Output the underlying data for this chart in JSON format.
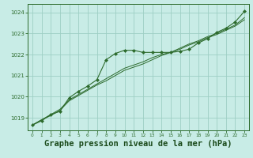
{
  "background_color": "#c8ece6",
  "grid_color": "#9dcfc4",
  "line_color": "#2d6b2d",
  "marker_color": "#2d6b2d",
  "title": "Graphe pression niveau de la mer (hPa)",
  "title_fontsize": 7.5,
  "title_color": "#1a4a1a",
  "xlim": [
    -0.5,
    23.5
  ],
  "ylim": [
    1018.4,
    1024.4
  ],
  "yticks": [
    1019,
    1020,
    1021,
    1022,
    1023,
    1024
  ],
  "xticks": [
    0,
    1,
    2,
    3,
    4,
    5,
    6,
    7,
    8,
    9,
    10,
    11,
    12,
    13,
    14,
    15,
    16,
    17,
    18,
    19,
    20,
    21,
    22,
    23
  ],
  "series1": [
    1018.65,
    1018.85,
    1019.15,
    1019.3,
    1019.95,
    1020.25,
    1020.5,
    1020.8,
    1021.75,
    1022.05,
    1022.2,
    1022.2,
    1022.1,
    1022.1,
    1022.1,
    1022.1,
    1022.15,
    1022.25,
    1022.55,
    1022.75,
    1023.05,
    1023.25,
    1023.55,
    1024.05
  ],
  "series2": [
    1018.65,
    1018.9,
    1019.15,
    1019.4,
    1019.85,
    1020.1,
    1020.35,
    1020.6,
    1020.85,
    1021.1,
    1021.35,
    1021.5,
    1021.65,
    1021.85,
    1022.0,
    1022.1,
    1022.3,
    1022.5,
    1022.65,
    1022.85,
    1023.0,
    1023.2,
    1023.4,
    1023.75
  ],
  "series3": [
    1018.65,
    1018.9,
    1019.1,
    1019.35,
    1019.8,
    1020.05,
    1020.3,
    1020.55,
    1020.75,
    1021.0,
    1021.25,
    1021.4,
    1021.55,
    1021.75,
    1021.95,
    1022.1,
    1022.25,
    1022.45,
    1022.6,
    1022.8,
    1022.95,
    1023.15,
    1023.35,
    1023.65
  ]
}
